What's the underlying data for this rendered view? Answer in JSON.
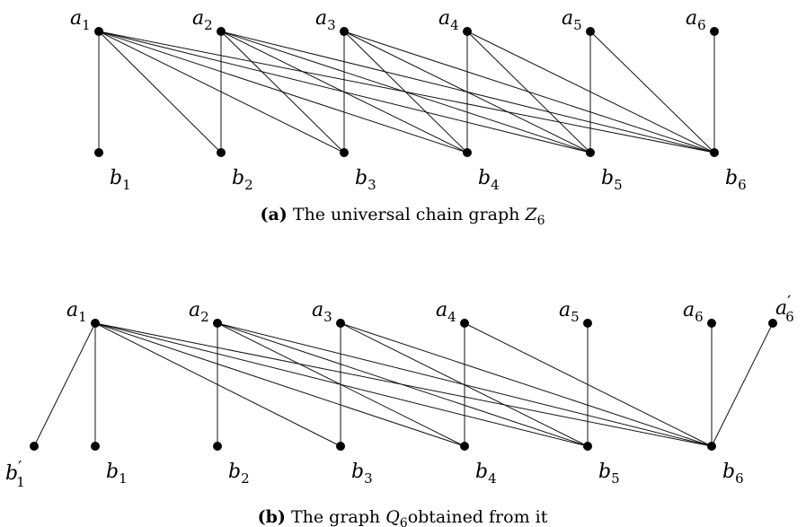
{
  "panel_a": {
    "caption": {
      "tag": "(a)",
      "text": "The universal chain graph",
      "symbol": "Z",
      "subscript": "6"
    },
    "top_vertices": [
      {
        "id": "a1",
        "base": "a",
        "sub": "1",
        "prime": ""
      },
      {
        "id": "a2",
        "base": "a",
        "sub": "2",
        "prime": ""
      },
      {
        "id": "a3",
        "base": "a",
        "sub": "3",
        "prime": ""
      },
      {
        "id": "a4",
        "base": "a",
        "sub": "4",
        "prime": ""
      },
      {
        "id": "a5",
        "base": "a",
        "sub": "5",
        "prime": ""
      },
      {
        "id": "a6",
        "base": "a",
        "sub": "6",
        "prime": ""
      }
    ],
    "bottom_vertices": [
      {
        "id": "b1",
        "base": "b",
        "sub": "1",
        "prime": ""
      },
      {
        "id": "b2",
        "base": "b",
        "sub": "2",
        "prime": ""
      },
      {
        "id": "b3",
        "base": "b",
        "sub": "3",
        "prime": ""
      },
      {
        "id": "b4",
        "base": "b",
        "sub": "4",
        "prime": ""
      },
      {
        "id": "b5",
        "base": "b",
        "sub": "5",
        "prime": ""
      },
      {
        "id": "b6",
        "base": "b",
        "sub": "6",
        "prime": ""
      }
    ],
    "edges": [
      [
        "a1",
        "b1"
      ],
      [
        "a1",
        "b2"
      ],
      [
        "a1",
        "b3"
      ],
      [
        "a1",
        "b4"
      ],
      [
        "a1",
        "b5"
      ],
      [
        "a1",
        "b6"
      ],
      [
        "a2",
        "b2"
      ],
      [
        "a2",
        "b3"
      ],
      [
        "a2",
        "b4"
      ],
      [
        "a2",
        "b5"
      ],
      [
        "a2",
        "b6"
      ],
      [
        "a3",
        "b3"
      ],
      [
        "a3",
        "b4"
      ],
      [
        "a3",
        "b5"
      ],
      [
        "a3",
        "b6"
      ],
      [
        "a4",
        "b4"
      ],
      [
        "a4",
        "b5"
      ],
      [
        "a4",
        "b6"
      ],
      [
        "a5",
        "b5"
      ],
      [
        "a5",
        "b6"
      ],
      [
        "a6",
        "b6"
      ]
    ]
  },
  "panel_b": {
    "caption": {
      "tag": "(b)",
      "text_before": "The graph",
      "symbol": "Q",
      "subscript": "6",
      "text_after": "obtained from it"
    },
    "top_vertices": [
      {
        "id": "a1",
        "base": "a",
        "sub": "1",
        "prime": ""
      },
      {
        "id": "a2",
        "base": "a",
        "sub": "2",
        "prime": ""
      },
      {
        "id": "a3",
        "base": "a",
        "sub": "3",
        "prime": ""
      },
      {
        "id": "a4",
        "base": "a",
        "sub": "4",
        "prime": ""
      },
      {
        "id": "a5",
        "base": "a",
        "sub": "5",
        "prime": ""
      },
      {
        "id": "a6",
        "base": "a",
        "sub": "6",
        "prime": ""
      },
      {
        "id": "a6p",
        "base": "a",
        "sub": "6",
        "prime": "′"
      }
    ],
    "bottom_vertices": [
      {
        "id": "b1p",
        "base": "b",
        "sub": "1",
        "prime": "′"
      },
      {
        "id": "b1",
        "base": "b",
        "sub": "1",
        "prime": ""
      },
      {
        "id": "b2",
        "base": "b",
        "sub": "2",
        "prime": ""
      },
      {
        "id": "b3",
        "base": "b",
        "sub": "3",
        "prime": ""
      },
      {
        "id": "b4",
        "base": "b",
        "sub": "4",
        "prime": ""
      },
      {
        "id": "b5",
        "base": "b",
        "sub": "5",
        "prime": ""
      },
      {
        "id": "b6",
        "base": "b",
        "sub": "6",
        "prime": ""
      }
    ],
    "edges": [
      [
        "a1",
        "b1p"
      ],
      [
        "a1",
        "b1"
      ],
      [
        "a1",
        "b3"
      ],
      [
        "a1",
        "b4"
      ],
      [
        "a1",
        "b5"
      ],
      [
        "a1",
        "b6"
      ],
      [
        "a2",
        "b2"
      ],
      [
        "a2",
        "b4"
      ],
      [
        "a2",
        "b5"
      ],
      [
        "a2",
        "b6"
      ],
      [
        "a3",
        "b3"
      ],
      [
        "a3",
        "b5"
      ],
      [
        "a3",
        "b6"
      ],
      [
        "a4",
        "b4"
      ],
      [
        "a4",
        "b6"
      ],
      [
        "a5",
        "b5"
      ],
      [
        "a6",
        "b6"
      ],
      [
        "a6p",
        "b6"
      ]
    ]
  }
}
